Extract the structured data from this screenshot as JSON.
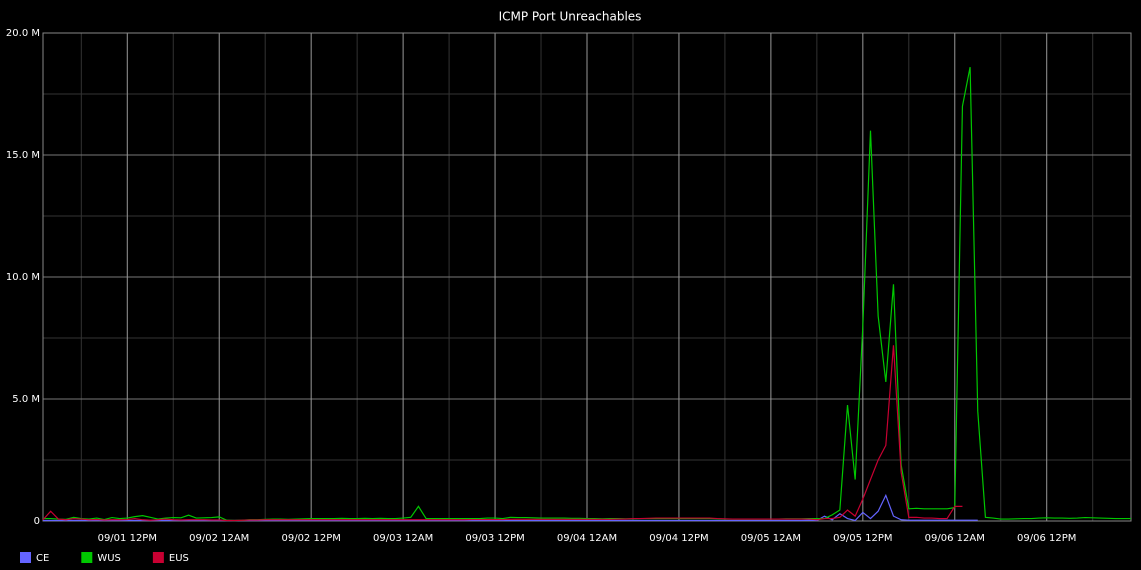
{
  "chart_data": {
    "type": "line",
    "title": "ICMP Port Unreachables",
    "x": [
      null,
      null,
      null,
      null,
      null,
      null,
      null,
      null,
      null,
      null,
      null,
      "09/01 12PM",
      null,
      null,
      null,
      null,
      null,
      null,
      null,
      null,
      null,
      null,
      null,
      "09/02 12AM",
      null,
      null,
      null,
      null,
      null,
      null,
      null,
      null,
      null,
      null,
      null,
      "09/02 12PM",
      null,
      null,
      null,
      null,
      null,
      null,
      null,
      null,
      null,
      null,
      null,
      "09/03 12AM",
      null,
      null,
      null,
      null,
      null,
      null,
      null,
      null,
      null,
      null,
      null,
      "09/03 12PM",
      null,
      null,
      null,
      null,
      null,
      null,
      null,
      null,
      null,
      null,
      null,
      "09/04 12AM",
      null,
      null,
      null,
      null,
      null,
      null,
      null,
      null,
      null,
      null,
      null,
      "09/04 12PM",
      null,
      null,
      null,
      null,
      null,
      null,
      null,
      null,
      null,
      null,
      null,
      "09/05 12AM",
      null,
      null,
      null,
      null,
      null,
      null,
      null,
      null,
      null,
      null,
      null,
      "09/05 12PM",
      null,
      null,
      null,
      null,
      null,
      null,
      null,
      null,
      null,
      null,
      null,
      "09/06 12AM",
      null,
      null,
      null,
      null,
      null,
      null,
      null,
      null,
      null,
      null,
      null,
      "09/06 12PM",
      null,
      null,
      null,
      null,
      null,
      null,
      null,
      null,
      null,
      null,
      null
    ],
    "ylim": [
      0,
      20
    ],
    "yticks": [
      0,
      {
        "value": 5,
        "label": "5.0 M"
      },
      {
        "value": 10,
        "label": "10.0 M"
      },
      {
        "value": 15,
        "label": "15.0 M"
      },
      {
        "value": 20,
        "label": "20.0 M"
      }
    ],
    "grid": true,
    "legend": "bottom",
    "series": [
      {
        "name": "CE",
        "color": "#6464ff",
        "values": [
          0.02,
          0.02,
          0.02,
          0.02,
          0.02,
          0.02,
          0.02,
          0.02,
          0.02,
          0.02,
          0.02,
          0.02,
          0.02,
          0.02,
          0.02,
          0.02,
          0.02,
          0.02,
          0.02,
          0.02,
          0.02,
          0.02,
          0.02,
          0.02,
          0.02,
          0.02,
          0.02,
          0.02,
          0.02,
          0.02,
          0.02,
          0.02,
          0.02,
          0.02,
          0.02,
          0.02,
          0.02,
          0.02,
          0.02,
          0.02,
          0.02,
          0.02,
          0.02,
          0.02,
          0.02,
          0.02,
          0.02,
          0.02,
          0.02,
          0.02,
          0.02,
          0.02,
          0.02,
          0.02,
          0.02,
          0.02,
          0.02,
          0.02,
          0.02,
          0.02,
          0.02,
          0.02,
          0.02,
          0.02,
          0.02,
          0.02,
          0.02,
          0.02,
          0.02,
          0.02,
          0.02,
          0.02,
          0.02,
          0.02,
          0.02,
          0.02,
          0.02,
          0.02,
          0.02,
          0.02,
          0.02,
          0.02,
          0.02,
          0.02,
          0.02,
          0.02,
          0.02,
          0.02,
          0.02,
          0.02,
          0.02,
          0.02,
          0.02,
          0.02,
          0.02,
          0.02,
          0.02,
          0.02,
          0.02,
          0.02,
          0.03,
          0.02,
          0.2,
          0.05,
          0.3,
          0.1,
          0.02,
          0.35,
          0.1,
          0.4,
          1.05,
          0.2,
          0.05,
          0.03,
          0.03,
          0.03,
          0.03,
          0.03,
          0.03,
          0.03,
          0.03,
          0.03,
          0.03,
          null,
          null,
          null,
          null,
          null,
          null,
          null,
          null,
          null,
          null,
          null,
          null,
          null,
          null,
          null,
          null,
          null,
          null,
          null,
          null
        ]
      },
      {
        "name": "WUS",
        "color": "#00c800",
        "values": [
          0.1,
          0.1,
          0.08,
          0.07,
          0.15,
          0.1,
          0.08,
          0.12,
          0.06,
          0.14,
          0.1,
          0.12,
          0.18,
          0.22,
          0.15,
          0.08,
          0.12,
          0.14,
          0.13,
          0.24,
          0.12,
          0.13,
          0.14,
          0.17,
          0.03,
          0.02,
          0.03,
          0.05,
          0.05,
          0.07,
          0.08,
          0.08,
          0.07,
          0.08,
          0.09,
          0.1,
          0.1,
          0.1,
          0.1,
          0.11,
          0.1,
          0.1,
          0.11,
          0.1,
          0.11,
          0.1,
          0.1,
          0.12,
          0.15,
          0.6,
          0.1,
          0.1,
          0.1,
          0.1,
          0.1,
          0.1,
          0.1,
          0.1,
          0.12,
          0.12,
          0.1,
          0.15,
          0.14,
          0.14,
          0.13,
          0.12,
          0.12,
          0.12,
          0.12,
          0.11,
          0.11,
          0.1,
          0.1,
          0.09,
          0.1,
          0.1,
          0.09,
          0.09,
          0.1,
          0.1,
          0.1,
          0.1,
          0.1,
          0.1,
          0.1,
          0.1,
          0.1,
          0.1,
          0.09,
          0.08,
          0.08,
          0.08,
          0.08,
          0.08,
          0.08,
          0.08,
          0.08,
          0.09,
          0.09,
          0.09,
          0.1,
          0.1,
          0.1,
          0.25,
          0.45,
          4.75,
          1.7,
          8.0,
          16.0,
          8.4,
          5.7,
          9.7,
          2.3,
          0.5,
          0.52,
          0.5,
          0.5,
          0.5,
          0.5,
          0.55,
          17.0,
          18.6,
          4.5,
          0.15,
          0.12,
          0.08,
          0.08,
          0.09,
          0.1,
          0.1,
          0.12,
          0.13,
          0.12,
          0.12,
          0.11,
          0.12,
          0.14,
          0.13,
          0.12,
          0.11,
          0.1,
          0.1,
          0.1
        ]
      },
      {
        "name": "EUS",
        "color": "#c80032",
        "values": [
          0.05,
          0.4,
          0.08,
          0.05,
          0.1,
          0.08,
          0.05,
          0.06,
          0.04,
          0.05,
          0.05,
          0.06,
          0.1,
          0.05,
          0.03,
          0.05,
          0.08,
          0.05,
          0.04,
          0.05,
          0.05,
          0.05,
          0.04,
          0.04,
          0.02,
          0.02,
          0.03,
          0.04,
          0.04,
          0.05,
          0.05,
          0.05,
          0.05,
          0.05,
          0.05,
          0.05,
          0.05,
          0.05,
          0.05,
          0.05,
          0.05,
          0.05,
          0.05,
          0.05,
          0.05,
          0.05,
          0.05,
          0.05,
          0.05,
          0.05,
          0.05,
          0.05,
          0.05,
          0.05,
          0.05,
          0.05,
          0.06,
          0.06,
          0.06,
          0.06,
          0.06,
          0.07,
          0.07,
          0.07,
          0.07,
          0.07,
          0.07,
          0.07,
          0.07,
          0.07,
          0.07,
          0.07,
          0.07,
          0.07,
          0.07,
          0.08,
          0.08,
          0.1,
          0.1,
          0.11,
          0.12,
          0.12,
          0.12,
          0.12,
          0.12,
          0.12,
          0.12,
          0.12,
          0.1,
          0.09,
          0.08,
          0.08,
          0.08,
          0.08,
          0.08,
          0.08,
          0.08,
          0.08,
          0.08,
          0.08,
          0.08,
          0.05,
          0.1,
          0.1,
          0.15,
          0.45,
          0.2,
          0.9,
          1.7,
          2.5,
          3.1,
          7.2,
          2.0,
          0.15,
          0.15,
          0.12,
          0.12,
          0.1,
          0.1,
          0.6,
          0.6,
          null,
          null,
          null,
          null,
          null,
          null,
          null,
          null,
          null,
          null,
          null,
          null,
          null,
          null,
          null,
          null,
          null,
          null,
          null,
          null,
          null,
          null
        ]
      }
    ]
  }
}
